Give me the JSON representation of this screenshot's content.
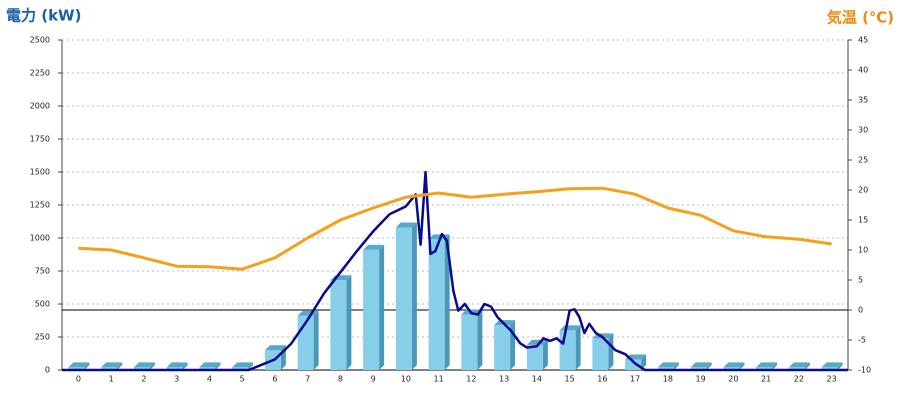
{
  "chart_data": {
    "type": "bar_line",
    "ylabel": "電力 (kW)",
    "y2label": "気温 (℃)",
    "categories": [
      "0",
      "1",
      "2",
      "3",
      "4",
      "5",
      "6",
      "7",
      "8",
      "9",
      "10",
      "11",
      "12",
      "13",
      "14",
      "15",
      "16",
      "17",
      "18",
      "19",
      "20",
      "21",
      "22",
      "23"
    ],
    "xlim": [
      -0.5,
      23.5
    ],
    "ylim": [
      0,
      2500
    ],
    "yticks": [
      0,
      250,
      500,
      750,
      1000,
      1250,
      1500,
      1750,
      2000,
      2250,
      2500
    ],
    "y2lim": [
      -10,
      45
    ],
    "y2ticks": [
      -10,
      -5,
      0,
      5,
      10,
      15,
      20,
      25,
      30,
      35,
      40,
      45
    ],
    "grid": true,
    "reference_lines": [
      {
        "axis": "y2",
        "value": 0
      }
    ],
    "series": [
      {
        "type": "bar",
        "color": "#87ceeb",
        "values": [
          20,
          20,
          20,
          20,
          20,
          20,
          150,
          410,
          680,
          910,
          1080,
          990,
          420,
          340,
          190,
          300,
          240,
          80,
          20,
          20,
          20,
          20,
          20,
          20
        ]
      },
      {
        "type": "line",
        "color": "#0a0a8c",
        "x": [
          -0.5,
          5.2,
          6,
          6.5,
          7,
          7.5,
          8,
          8.5,
          9,
          9.5,
          10,
          10.3,
          10.45,
          10.6,
          10.75,
          10.9,
          11.1,
          11.25,
          11.45,
          11.6,
          11.8,
          12,
          12.2,
          12.4,
          12.6,
          12.8,
          13,
          13.2,
          13.5,
          13.7,
          14,
          14.2,
          14.4,
          14.6,
          14.8,
          15,
          15.15,
          15.3,
          15.45,
          15.6,
          15.8,
          16,
          16.2,
          16.4,
          16.7,
          17,
          17.3,
          23.5
        ],
        "values": [
          0,
          0,
          80,
          200,
          380,
          580,
          740,
          900,
          1050,
          1180,
          1240,
          1330,
          950,
          1500,
          880,
          900,
          1030,
          980,
          600,
          450,
          500,
          430,
          420,
          500,
          480,
          400,
          350,
          300,
          200,
          170,
          180,
          240,
          220,
          240,
          200,
          450,
          460,
          400,
          280,
          350,
          280,
          250,
          200,
          150,
          120,
          50,
          0,
          0
        ]
      },
      {
        "type": "line",
        "axis": "y2",
        "color": "#f5a01a",
        "values": [
          10.3,
          10,
          8.7,
          7.3,
          7.2,
          6.8,
          8.7,
          12,
          15,
          17,
          18.8,
          19.5,
          18.8,
          19.3,
          19.7,
          20.2,
          20.3,
          19.3,
          17,
          15.8,
          13.2,
          12.2,
          11.8,
          11
        ]
      }
    ]
  }
}
